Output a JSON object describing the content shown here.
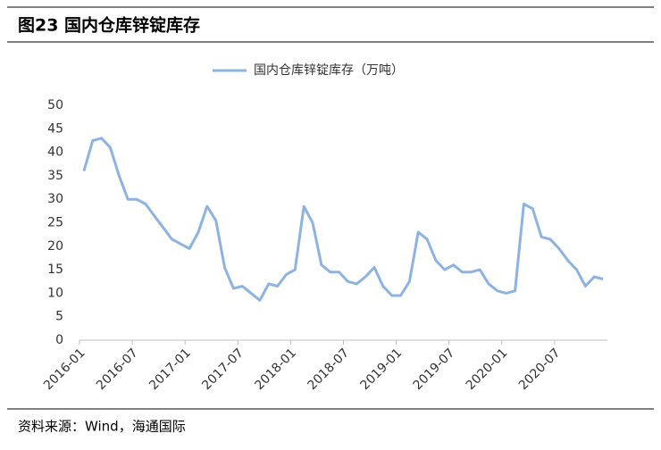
{
  "header": {
    "title": "图23 国内仓库锌锭库存"
  },
  "footer": {
    "source": "资料来源：Wind，海通国际"
  },
  "chart_data": {
    "type": "line",
    "categories": [
      "2016-01",
      null,
      null,
      null,
      null,
      null,
      "2016-07",
      null,
      null,
      null,
      null,
      null,
      "2017-01",
      null,
      null,
      null,
      null,
      null,
      "2017-07",
      null,
      null,
      null,
      null,
      null,
      "2018-01",
      null,
      null,
      null,
      null,
      null,
      "2018-07",
      null,
      null,
      null,
      null,
      null,
      "2019-01",
      null,
      null,
      null,
      null,
      null,
      "2019-07",
      null,
      null,
      null,
      null,
      null,
      "2020-01",
      null,
      null,
      null,
      null,
      null,
      "2020-07",
      null,
      null,
      null,
      null,
      null
    ],
    "series": [
      {
        "name": "国内仓库锌锭库存（万吨）",
        "color": "#8db3e2",
        "values": [
          36,
          42.5,
          43,
          41,
          35,
          30,
          30,
          29,
          26.5,
          24,
          21.5,
          20.5,
          19.5,
          23,
          28.5,
          25.5,
          15.5,
          11,
          11.5,
          10,
          8.5,
          12,
          11.5,
          14,
          15,
          28.5,
          25,
          16,
          14.5,
          14.5,
          12.5,
          12,
          13.5,
          15.5,
          11.5,
          9.5,
          9.5,
          12.5,
          23,
          21.5,
          17,
          15,
          16,
          14.5,
          14.5,
          15,
          12,
          10.5,
          10,
          10.5,
          29,
          28,
          22,
          21.5,
          19.5,
          17,
          15,
          11.5,
          13.5,
          13
        ]
      }
    ],
    "ylim": [
      0,
      50
    ],
    "yticks": [
      0,
      5,
      10,
      15,
      20,
      25,
      30,
      35,
      40,
      45,
      50
    ],
    "legend": "top",
    "grid": false
  }
}
